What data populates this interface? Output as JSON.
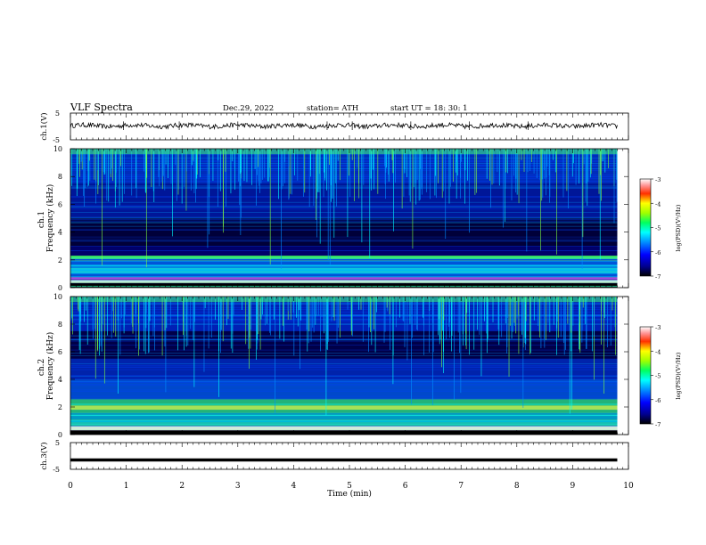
{
  "header": {
    "title": "VLF  Spectra",
    "date": "Dec.29, 2022",
    "station": "station= ATH",
    "start": "start  UT  =    18: 30: 1"
  },
  "colors": {
    "colormap": [
      "#000000",
      "#000080",
      "#0000ff",
      "#0080ff",
      "#00ffff",
      "#00ff80",
      "#80ff00",
      "#ffff00",
      "#ff8000",
      "#ff0000",
      "#ffffff"
    ]
  },
  "chart_data": [
    {
      "type": "line",
      "panel": "ch1-waveform",
      "ylabel": "ch.1(V)",
      "ylim": [
        -5,
        5
      ],
      "yticks": [
        "5",
        "-5"
      ],
      "x": [
        0,
        0.5,
        1,
        1.5,
        2,
        2.5,
        3,
        3.5,
        4,
        4.5,
        5,
        5.5,
        6,
        6.5,
        7,
        7.5,
        8,
        8.5,
        9,
        9.5,
        9.8
      ],
      "y": [
        0.2,
        0.4,
        0.1,
        0.3,
        0.5,
        0.2,
        0.3,
        0.1,
        0.4,
        0.2,
        0.3,
        0.2,
        0.4,
        0.1,
        0.3,
        0.2,
        0.3,
        0.4,
        0.2,
        0.3,
        0.2
      ]
    },
    {
      "type": "heatmap",
      "panel": "ch1-spectrogram",
      "ylabel": "ch.1\nFrequency  (kHz)",
      "ylim": [
        0,
        10
      ],
      "yticks": [
        "0",
        "2",
        "4",
        "6",
        "8",
        "10"
      ],
      "colorbar": {
        "label": "log(PSD)(V²/Hz)",
        "range": [
          -7,
          -3
        ],
        "ticks": [
          "-3",
          "-4",
          "-5",
          "-6",
          "-7"
        ]
      }
    },
    {
      "type": "heatmap",
      "panel": "ch2-spectrogram",
      "ylabel": "ch.2\nFrequency  (kHz)",
      "ylim": [
        0,
        10
      ],
      "yticks": [
        "0",
        "2",
        "4",
        "6",
        "8",
        "10"
      ],
      "colorbar": {
        "label": "log(PSD)(V²/Hz)",
        "range": [
          -7,
          -3
        ],
        "ticks": [
          "-3",
          "-4",
          "-5",
          "-6",
          "-7"
        ]
      }
    },
    {
      "type": "line",
      "panel": "ch3-waveform",
      "ylabel": "ch.3(V)",
      "ylim": [
        -5,
        5
      ],
      "yticks": [
        "5",
        "-5"
      ],
      "x": [
        0,
        9.8
      ],
      "y": [
        -1.5,
        -1.5
      ]
    }
  ],
  "xaxis": {
    "label": "Time  (min)",
    "ticks": [
      "0",
      "1",
      "2",
      "3",
      "4",
      "5",
      "6",
      "7",
      "8",
      "9",
      "10"
    ],
    "range": [
      0,
      10
    ]
  }
}
